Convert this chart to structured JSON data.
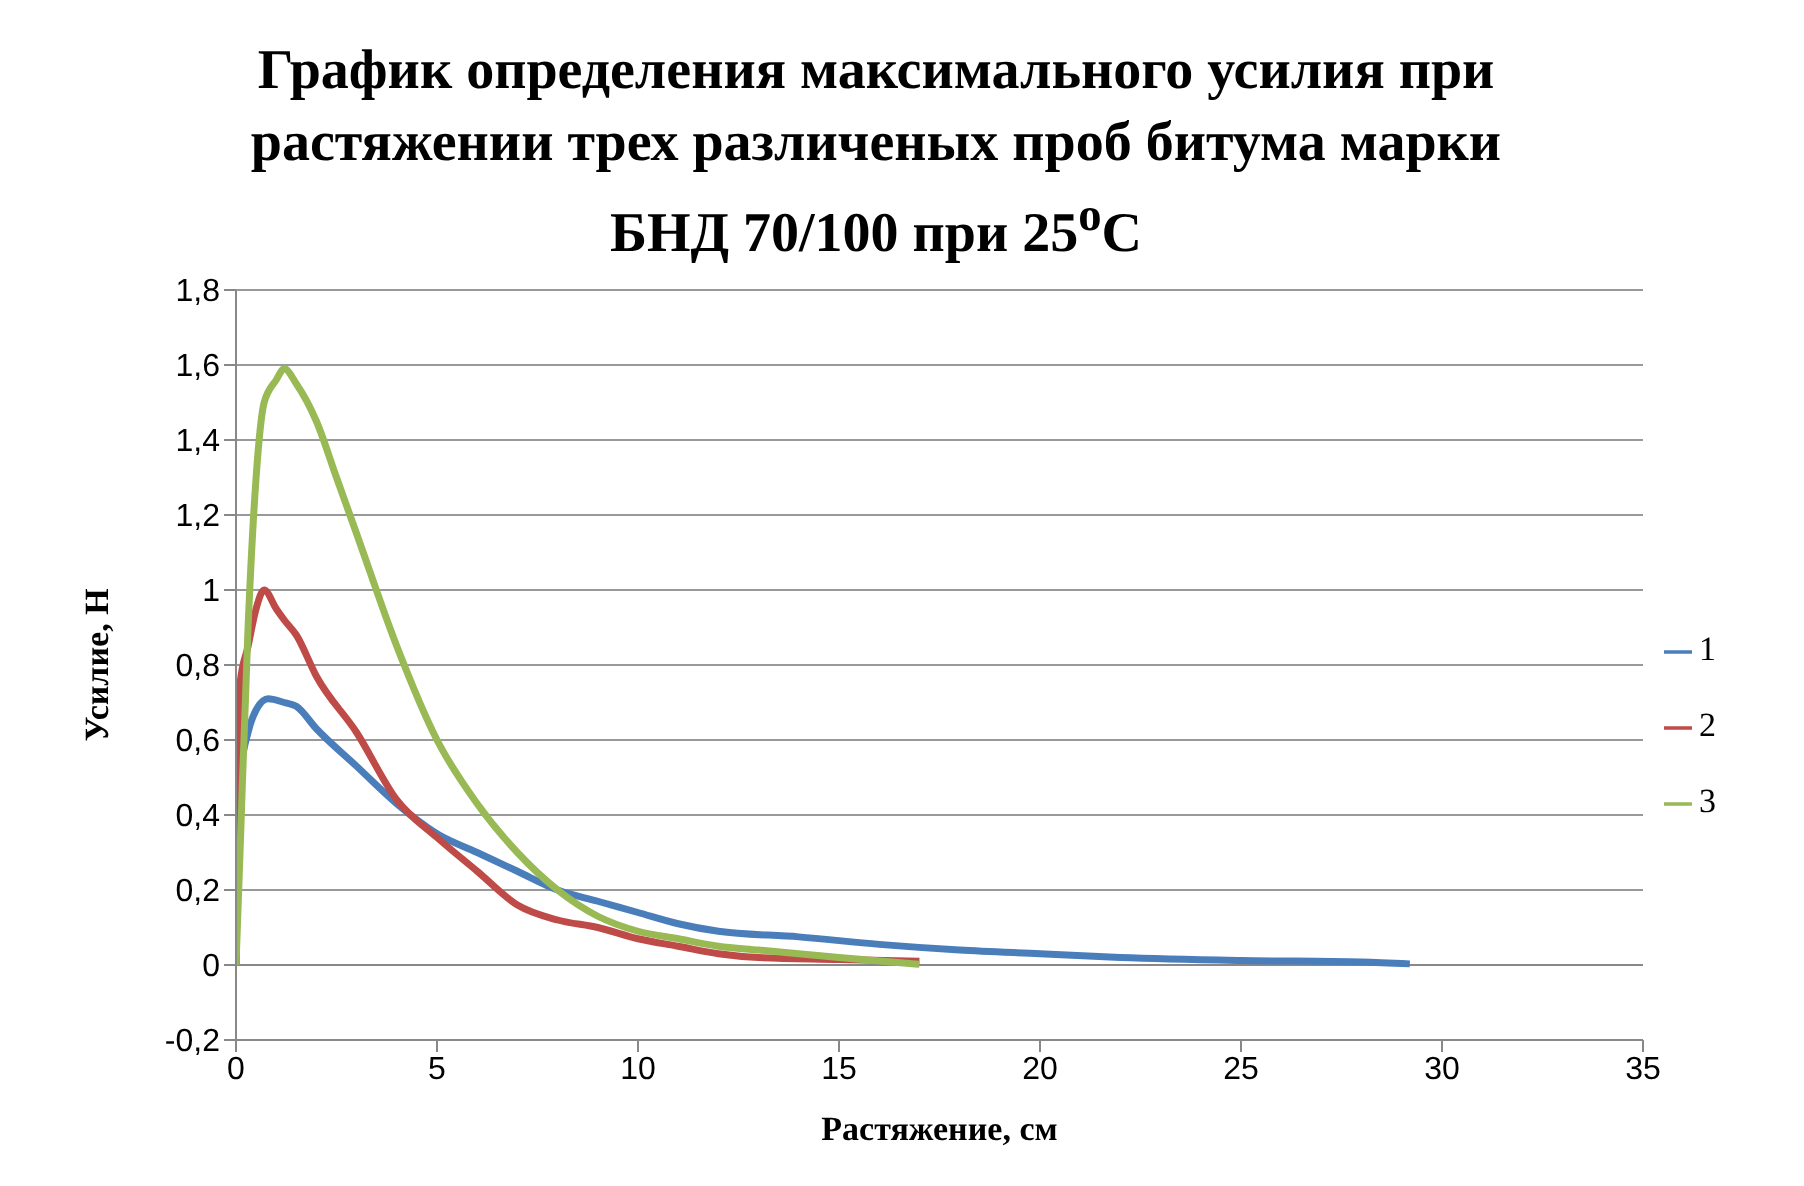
{
  "chart_data": {
    "type": "line",
    "title": "График определения максимального усилия при растяжении трех различеных проб битума марки БНД 70/100 при 25$^{о}$С",
    "xlabel": "Растяжение, см",
    "ylabel": "Усилие, Н",
    "xlim": [
      0,
      35
    ],
    "xticks": [
      0,
      5,
      10,
      15,
      20,
      25,
      30,
      35
    ],
    "ylim": [
      -0.2,
      1.8
    ],
    "yticks": [
      {
        "value": -0.2,
        "label": "-0,2"
      },
      0,
      {
        "value": 0.2,
        "label": "0,2"
      },
      {
        "value": 0.4,
        "label": "0,4"
      },
      {
        "value": 0.6,
        "label": "0,6"
      },
      {
        "value": 0.8,
        "label": "0,8"
      },
      1,
      {
        "value": 1.2,
        "label": "1,2"
      },
      {
        "value": 1.4,
        "label": "1,4"
      },
      {
        "value": 1.6,
        "label": "1,6"
      },
      {
        "value": 1.8,
        "label": "1,8"
      }
    ],
    "grid": "y",
    "legend": "right",
    "marker": "none",
    "line_style": "solid",
    "series": [
      {
        "name": "1",
        "color": "#4a7ebb",
        "x": [
          0,
          0.1,
          0.3,
          0.5,
          0.8,
          1.2,
          1.5,
          2,
          3,
          4,
          5,
          6,
          7,
          8,
          9,
          10,
          11,
          12,
          14,
          16,
          18,
          20,
          22,
          25,
          28,
          29.2
        ],
        "values": [
          0,
          0.5,
          0.62,
          0.68,
          0.71,
          0.7,
          0.69,
          0.63,
          0.53,
          0.43,
          0.35,
          0.3,
          0.25,
          0.2,
          0.17,
          0.14,
          0.11,
          0.09,
          0.075,
          0.055,
          0.04,
          0.03,
          0.02,
          0.012,
          0.008,
          0.003
        ]
      },
      {
        "name": "2",
        "color": "#be4b48",
        "x": [
          0,
          0.05,
          0.1,
          0.3,
          0.5,
          0.7,
          1,
          1.2,
          1.5,
          2,
          3,
          4,
          5,
          6,
          7,
          8,
          9,
          10,
          11,
          12,
          13,
          15,
          17
        ],
        "values": [
          0,
          0.4,
          0.75,
          0.85,
          0.95,
          1.0,
          0.95,
          0.92,
          0.88,
          0.77,
          0.62,
          0.44,
          0.34,
          0.25,
          0.16,
          0.12,
          0.1,
          0.07,
          0.05,
          0.03,
          0.02,
          0.015,
          0.01
        ]
      },
      {
        "name": "3",
        "color": "#98b954",
        "x": [
          0,
          0.1,
          0.3,
          0.5,
          0.7,
          1,
          1.2,
          1.5,
          2,
          2.5,
          3,
          4,
          5,
          6,
          7,
          8,
          9,
          10,
          11,
          12,
          13,
          15,
          17
        ],
        "values": [
          0,
          0.3,
          0.9,
          1.3,
          1.5,
          1.56,
          1.59,
          1.55,
          1.45,
          1.3,
          1.15,
          0.85,
          0.6,
          0.43,
          0.3,
          0.2,
          0.13,
          0.09,
          0.07,
          0.05,
          0.04,
          0.02,
          0.002
        ]
      }
    ]
  }
}
